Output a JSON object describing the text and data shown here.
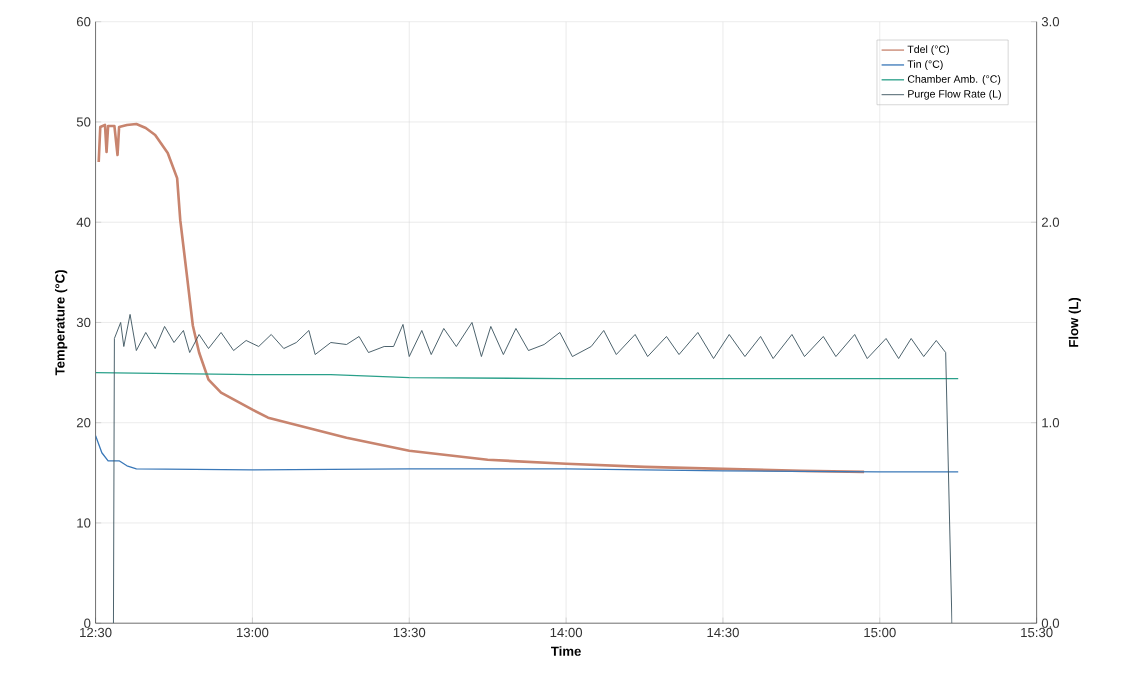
{
  "chart_data": {
    "type": "line",
    "xlabel": "Time",
    "ylabel": "Temperature (°C)",
    "y2label": "Flow (L)",
    "xlim": [
      12.5,
      15.5
    ],
    "xticks": [
      {
        "value": 12.5,
        "label": "12:30"
      },
      {
        "value": 13.0,
        "label": "13:00"
      },
      {
        "value": 13.5,
        "label": "13:30"
      },
      {
        "value": 14.0,
        "label": "14:00"
      },
      {
        "value": 14.5,
        "label": "14:30"
      },
      {
        "value": 15.0,
        "label": "15:00"
      },
      {
        "value": 15.5,
        "label": "15:30"
      }
    ],
    "ylim": [
      0,
      60
    ],
    "yticks": [
      0,
      10,
      20,
      30,
      40,
      50,
      60
    ],
    "y2lim": [
      0,
      3
    ],
    "y2ticks": [
      {
        "value": 0,
        "label": "0.0"
      },
      {
        "value": 1,
        "label": "1.0"
      },
      {
        "value": 2,
        "label": "2.0"
      },
      {
        "value": 3,
        "label": "3.0"
      }
    ],
    "grid": true,
    "legend": "top right",
    "marker": "none",
    "line_style": "solid",
    "series": [
      {
        "name": "Tdel (°C)",
        "color": "#c8846e",
        "x": [
          12.51,
          12.515,
          12.53,
          12.535,
          12.54,
          12.56,
          12.57,
          12.575,
          12.6,
          12.63,
          12.66,
          12.69,
          12.73,
          12.76,
          12.77,
          12.79,
          12.81,
          12.83,
          12.86,
          12.9,
          13.0,
          13.05,
          13.2,
          13.3,
          13.5,
          13.75,
          14.0,
          14.25,
          14.5,
          14.75,
          14.95
        ],
        "values": [
          46,
          49.5,
          49.7,
          47,
          49.6,
          49.6,
          46.7,
          49.5,
          49.7,
          49.8,
          49.4,
          48.7,
          46.9,
          44.4,
          40.2,
          35,
          29.7,
          27,
          24.3,
          23,
          21.3,
          20.5,
          19.3,
          18.5,
          17.2,
          16.3,
          15.9,
          15.6,
          15.4,
          15.2,
          15.1
        ]
      },
      {
        "name": "Tin (°C)",
        "color": "#3a78b8",
        "x": [
          12.5,
          12.52,
          12.54,
          12.575,
          12.6,
          12.63,
          13.0,
          13.5,
          14.0,
          14.5,
          15.0,
          15.25
        ],
        "values": [
          18.7,
          17,
          16.2,
          16.2,
          15.7,
          15.4,
          15.3,
          15.4,
          15.4,
          15.2,
          15.1,
          15.1
        ]
      },
      {
        "name": "Chamber Amb. (°C)",
        "color": "#2aa08a",
        "x": [
          12.5,
          13.0,
          13.25,
          13.5,
          14.0,
          14.5,
          15.25
        ],
        "values": [
          25,
          24.8,
          24.8,
          24.5,
          24.4,
          24.4,
          24.4
        ]
      },
      {
        "name": "Purge Flow Rate (L)",
        "color": "#3d5560",
        "axis": "y2",
        "x": [
          12.557,
          12.56,
          12.58,
          12.59,
          12.61,
          12.63,
          12.66,
          12.69,
          12.72,
          12.75,
          12.78,
          12.8,
          12.83,
          12.86,
          12.9,
          12.94,
          12.98,
          13.02,
          13.06,
          13.1,
          13.14,
          13.18,
          13.2,
          13.25,
          13.3,
          13.34,
          13.37,
          13.42,
          13.45,
          13.48,
          13.5,
          13.54,
          13.57,
          13.61,
          13.65,
          13.7,
          13.73,
          13.76,
          13.8,
          13.84,
          13.88,
          13.93,
          13.98,
          14.02,
          14.08,
          14.12,
          14.16,
          14.22,
          14.26,
          14.32,
          14.36,
          14.42,
          14.47,
          14.52,
          14.57,
          14.62,
          14.66,
          14.72,
          14.76,
          14.82,
          14.86,
          14.92,
          14.96,
          15.02,
          15.06,
          15.1,
          15.14,
          15.18,
          15.21,
          15.23
        ],
        "values": [
          0,
          1.42,
          1.5,
          1.38,
          1.54,
          1.36,
          1.45,
          1.37,
          1.48,
          1.4,
          1.46,
          1.35,
          1.44,
          1.37,
          1.45,
          1.36,
          1.41,
          1.38,
          1.44,
          1.37,
          1.4,
          1.46,
          1.34,
          1.4,
          1.39,
          1.43,
          1.35,
          1.38,
          1.38,
          1.49,
          1.33,
          1.46,
          1.34,
          1.47,
          1.38,
          1.5,
          1.33,
          1.48,
          1.34,
          1.47,
          1.36,
          1.39,
          1.45,
          1.33,
          1.38,
          1.46,
          1.34,
          1.44,
          1.33,
          1.43,
          1.34,
          1.45,
          1.32,
          1.44,
          1.33,
          1.43,
          1.32,
          1.44,
          1.33,
          1.43,
          1.33,
          1.44,
          1.32,
          1.42,
          1.32,
          1.42,
          1.33,
          1.41,
          1.35,
          0
        ]
      }
    ]
  }
}
